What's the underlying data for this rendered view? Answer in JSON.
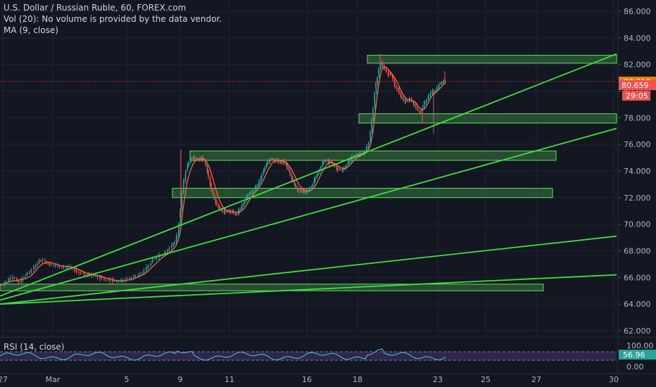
{
  "legend": {
    "title": "U.S. Dollar / Russian Ruble, 60, FOREX.com",
    "vol": "Vol (20): No volume is provided by the data vendor.",
    "ma": "MA (9, close)",
    "rsi": "RSI (14, close)"
  },
  "chart_data": {
    "type": "candlestick",
    "title": "U.S. Dollar / Russian Ruble, 60, FOREX.com",
    "price_axis": {
      "min": 62,
      "max": 86,
      "ticks": [
        "86.000",
        "84.000",
        "82.000",
        "80.000",
        "78.000",
        "76.000",
        "74.000",
        "72.000",
        "70.000",
        "68.000",
        "66.000",
        "64.000",
        "62.000"
      ]
    },
    "time_axis": {
      "labels": [
        "27",
        "Mar",
        "5",
        "9",
        "11",
        "16",
        "18",
        "23",
        "25",
        "27",
        "30"
      ]
    },
    "price_path": [
      [
        0,
        65.4
      ],
      [
        8,
        65.7
      ],
      [
        14,
        66
      ],
      [
        20,
        65.9
      ],
      [
        26,
        65.6
      ],
      [
        32,
        66.0
      ],
      [
        38,
        66.3
      ],
      [
        44,
        66.6
      ],
      [
        50,
        66.9
      ],
      [
        55,
        67.3
      ],
      [
        60,
        67.2
      ],
      [
        66,
        67.1
      ],
      [
        72,
        66.9
      ],
      [
        78,
        66.9
      ],
      [
        84,
        66.8
      ],
      [
        90,
        66.8
      ],
      [
        96,
        66.8
      ],
      [
        102,
        66.7
      ],
      [
        108,
        66.4
      ],
      [
        114,
        66.3
      ],
      [
        120,
        66.2
      ],
      [
        126,
        66.2
      ],
      [
        132,
        66.1
      ],
      [
        138,
        66.1
      ],
      [
        144,
        65.9
      ],
      [
        150,
        65.8
      ],
      [
        156,
        65.8
      ],
      [
        162,
        65.7
      ],
      [
        168,
        65.7
      ],
      [
        174,
        65.8
      ],
      [
        180,
        65.9
      ],
      [
        186,
        66.0
      ],
      [
        192,
        66.1
      ],
      [
        198,
        66.3
      ],
      [
        204,
        66.5
      ],
      [
        210,
        66.9
      ],
      [
        216,
        67.4
      ],
      [
        222,
        67.5
      ],
      [
        228,
        67.7
      ],
      [
        234,
        67.9
      ],
      [
        240,
        68.2
      ],
      [
        246,
        68.6
      ],
      [
        250,
        68.9
      ],
      [
        253,
        69.4
      ],
      [
        256,
        70.5
      ],
      [
        258,
        71.8
      ],
      [
        260,
        72.8
      ],
      [
        263,
        73.8
      ],
      [
        266,
        74.4
      ],
      [
        270,
        74.8
      ],
      [
        274,
        75.0
      ],
      [
        278,
        74.9
      ],
      [
        282,
        74.8
      ],
      [
        286,
        75.0
      ],
      [
        290,
        74.8
      ],
      [
        294,
        74.0
      ],
      [
        298,
        73.0
      ],
      [
        302,
        72.3
      ],
      [
        306,
        71.6
      ],
      [
        310,
        71.3
      ],
      [
        314,
        71.0
      ],
      [
        318,
        70.9
      ],
      [
        322,
        71.0
      ],
      [
        326,
        71.0
      ],
      [
        330,
        70.9
      ],
      [
        334,
        70.8
      ],
      [
        338,
        70.9
      ],
      [
        342,
        71.2
      ],
      [
        346,
        71.6
      ],
      [
        350,
        72.0
      ],
      [
        354,
        72.3
      ],
      [
        358,
        72.5
      ],
      [
        362,
        72.7
      ],
      [
        366,
        73.0
      ],
      [
        370,
        73.5
      ],
      [
        374,
        74.0
      ],
      [
        378,
        74.5
      ],
      [
        382,
        74.8
      ],
      [
        386,
        74.9
      ],
      [
        390,
        74.8
      ],
      [
        394,
        74.8
      ],
      [
        398,
        74.6
      ],
      [
        402,
        74.7
      ],
      [
        406,
        74.5
      ],
      [
        410,
        74.0
      ],
      [
        414,
        73.4
      ],
      [
        418,
        73.0
      ],
      [
        422,
        72.6
      ],
      [
        426,
        72.5
      ],
      [
        430,
        72.5
      ],
      [
        434,
        72.4
      ],
      [
        438,
        72.5
      ],
      [
        442,
        72.8
      ],
      [
        446,
        73.3
      ],
      [
        450,
        73.7
      ],
      [
        454,
        74.2
      ],
      [
        458,
        74.6
      ],
      [
        462,
        74.8
      ],
      [
        466,
        74.7
      ],
      [
        470,
        74.6
      ],
      [
        474,
        74.4
      ],
      [
        478,
        74.2
      ],
      [
        482,
        74.1
      ],
      [
        486,
        74.1
      ],
      [
        490,
        74.3
      ],
      [
        494,
        74.6
      ],
      [
        498,
        74.9
      ],
      [
        502,
        75.1
      ],
      [
        506,
        75.2
      ],
      [
        510,
        75.2
      ],
      [
        514,
        75.3
      ],
      [
        517,
        75.4
      ],
      [
        520,
        75.6
      ],
      [
        523,
        76.0
      ],
      [
        526,
        76.5
      ],
      [
        528,
        77.3
      ],
      [
        530,
        78.3
      ],
      [
        532,
        79.3
      ],
      [
        534,
        80.3
      ],
      [
        536,
        80.8
      ],
      [
        538,
        81.4
      ],
      [
        540,
        81.9
      ],
      [
        542,
        82.1
      ],
      [
        545,
        81.8
      ],
      [
        548,
        81.5
      ],
      [
        551,
        81.3
      ],
      [
        554,
        81.3
      ],
      [
        557,
        81.1
      ],
      [
        560,
        80.6
      ],
      [
        563,
        80.2
      ],
      [
        566,
        80.0
      ],
      [
        569,
        79.7
      ],
      [
        572,
        79.4
      ],
      [
        575,
        79.2
      ],
      [
        578,
        79.3
      ],
      [
        581,
        79.4
      ],
      [
        584,
        79.3
      ],
      [
        587,
        79.1
      ],
      [
        590,
        78.9
      ],
      [
        593,
        78.6
      ],
      [
        596,
        78.4
      ],
      [
        599,
        78.5
      ],
      [
        602,
        79.0
      ],
      [
        605,
        79.3
      ],
      [
        608,
        79.5
      ],
      [
        611,
        79.8
      ],
      [
        614,
        80.0
      ],
      [
        617,
        79.9
      ],
      [
        620,
        80.1
      ],
      [
        623,
        80.4
      ],
      [
        626,
        80.6
      ],
      [
        629,
        80.7
      ],
      [
        632,
        80.7
      ]
    ],
    "wicks": [
      {
        "x": 540,
        "high": 82.8
      },
      {
        "x": 616,
        "low": 76.8
      },
      {
        "x": 600,
        "low": 77.6
      },
      {
        "x": 257,
        "high": 75.6
      },
      {
        "x": 632,
        "high": 81.5
      }
    ],
    "ma": {
      "period": 9,
      "source": "close"
    },
    "current_price": "80.719",
    "ma_value": "80.659",
    "countdown": "29:05",
    "zones": [
      {
        "x1": 522,
        "x2": 876,
        "y_top": 82.7,
        "y_bottom": 82.1
      },
      {
        "x1": 510,
        "x2": 876,
        "y_top": 78.3,
        "y_bottom": 77.6
      },
      {
        "x1": 270,
        "x2": 790,
        "y_top": 75.5,
        "y_bottom": 74.8
      },
      {
        "x1": 245,
        "x2": 785,
        "y_top": 72.7,
        "y_bottom": 72.0
      },
      {
        "x1": 0,
        "x2": 772,
        "y_top": 65.5,
        "y_bottom": 65.0
      }
    ],
    "trendlines": [
      {
        "x1": 0,
        "y1": 64.6,
        "x2": 876,
        "y2": 82.8
      },
      {
        "x1": 0,
        "y1": 64.3,
        "x2": 876,
        "y2": 77.2
      },
      {
        "x1": 0,
        "y1": 64.0,
        "x2": 876,
        "y2": 69.1
      },
      {
        "x1": 0,
        "y1": 64.0,
        "x2": 876,
        "y2": 66.2
      }
    ],
    "rsi": {
      "period": 14,
      "value": "56.96",
      "ticks": [
        "100.00",
        "0.00"
      ],
      "upper": 70,
      "lower": 30
    },
    "colors": {
      "up": "#26a69a",
      "down": "#ef5350",
      "ma": "#ff7043",
      "zone": "#4caf50",
      "trend": "#3ee03e",
      "rsi": "#4fc3f7",
      "price_label": "#f57c00",
      "ma_label": "#ef5350"
    }
  }
}
